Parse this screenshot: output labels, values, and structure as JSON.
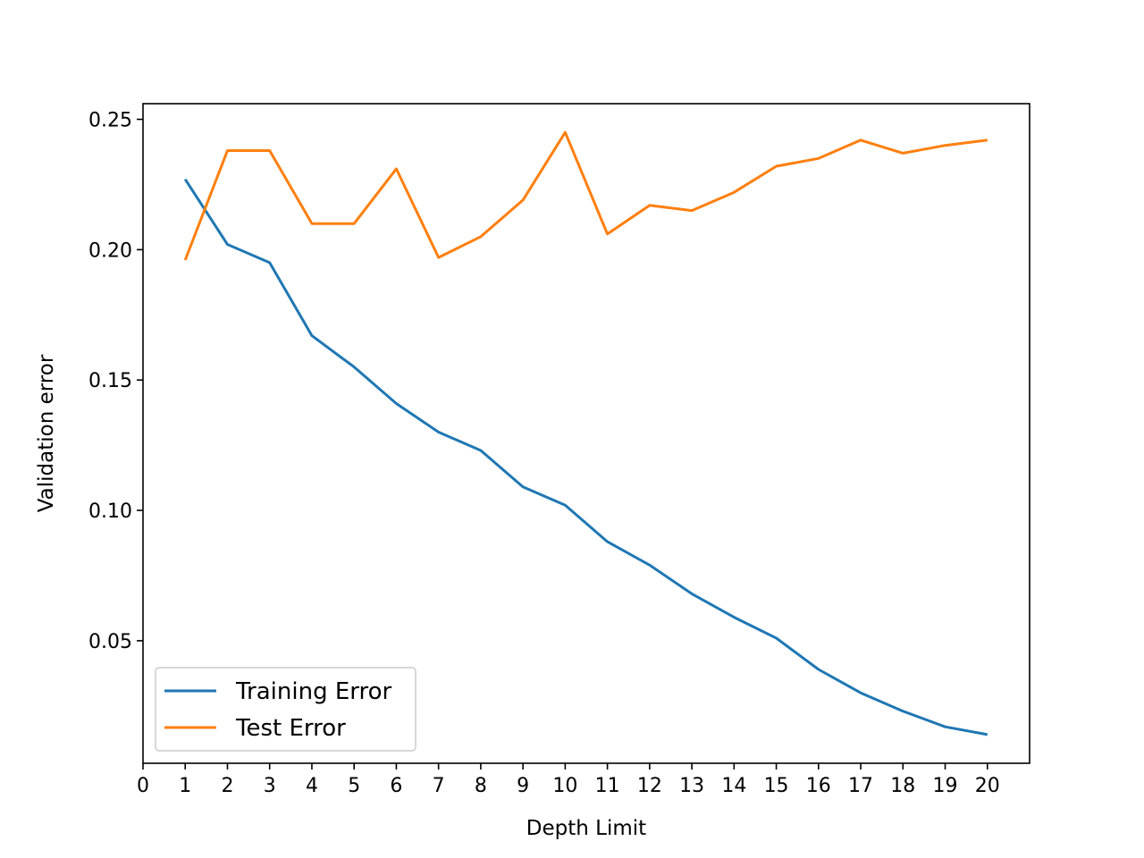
{
  "chart_data": {
    "type": "line",
    "title": "",
    "xlabel": "Depth Limit",
    "ylabel": "Validation error",
    "xlim": [
      0,
      21
    ],
    "ylim": [
      0.003,
      0.256
    ],
    "x_ticks": [
      0,
      1,
      2,
      3,
      4,
      5,
      6,
      7,
      8,
      9,
      10,
      11,
      12,
      13,
      14,
      15,
      16,
      17,
      18,
      19,
      20
    ],
    "x_tick_labels": [
      "0",
      "1",
      "2",
      "3",
      "4",
      "5",
      "6",
      "7",
      "8",
      "9",
      "10",
      "11",
      "12",
      "13",
      "14",
      "15",
      "16",
      "17",
      "18",
      "19",
      "20"
    ],
    "y_ticks": [
      0.05,
      0.1,
      0.15,
      0.2,
      0.25
    ],
    "y_tick_labels": [
      "0.05",
      "0.10",
      "0.15",
      "0.20",
      "0.25"
    ],
    "grid": false,
    "legend": "lower-left",
    "x": [
      1,
      2,
      3,
      4,
      5,
      6,
      7,
      8,
      9,
      10,
      11,
      12,
      13,
      14,
      15,
      16,
      17,
      18,
      19,
      20
    ],
    "series": [
      {
        "name": "Training Error",
        "color": "#1f77b4",
        "values": [
          0.227,
          0.202,
          0.195,
          0.167,
          0.155,
          0.141,
          0.13,
          0.123,
          0.109,
          0.102,
          0.088,
          0.079,
          0.068,
          0.059,
          0.051,
          0.039,
          0.03,
          0.023,
          0.017,
          0.014
        ]
      },
      {
        "name": "Test Error",
        "color": "#ff7f0e",
        "values": [
          0.196,
          0.238,
          0.238,
          0.21,
          0.21,
          0.231,
          0.197,
          0.205,
          0.219,
          0.245,
          0.206,
          0.217,
          0.215,
          0.222,
          0.232,
          0.235,
          0.242,
          0.237,
          0.24,
          0.242
        ]
      }
    ]
  }
}
